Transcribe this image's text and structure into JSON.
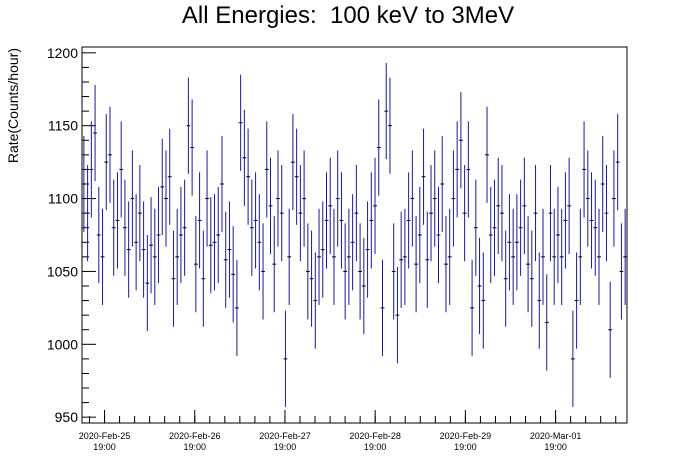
{
  "chart_data": {
    "type": "scatter",
    "title": "All Energies:  100 keV to 3MeV",
    "xlabel": "",
    "ylabel": "Rate(Counts/hour)",
    "ylim": [
      946,
      1204
    ],
    "xlim": [
      0,
      145
    ],
    "grid": false,
    "y_ticks": [
      950,
      1000,
      1050,
      1100,
      1150,
      1200
    ],
    "x_ticks": [
      {
        "x": 6,
        "date": "2020-Feb-25",
        "time": "19:00"
      },
      {
        "x": 30,
        "date": "2020-Feb-26",
        "time": "19:00"
      },
      {
        "x": 54,
        "date": "2020-Feb-27",
        "time": "19:00"
      },
      {
        "x": 78,
        "date": "2020-Feb-28",
        "time": "19:00"
      },
      {
        "x": 102,
        "date": "2020-Feb-29",
        "time": "19:00"
      },
      {
        "x": 126,
        "date": "2020-Mar-01",
        "time": "19:00"
      }
    ],
    "series": [
      {
        "color": "#1a1a8c",
        "error": 33,
        "values": [
          1110,
          1090,
          1120,
          1145,
          1075,
          1060,
          1125,
          1130,
          1080,
          1085,
          1120,
          1080,
          1065,
          1100,
          1070,
          1090,
          1065,
          1042,
          1068,
          1060,
          1075,
          1108,
          1100,
          1115,
          1045,
          1060,
          1075,
          1080,
          1150,
          1135,
          1055,
          1085,
          1045,
          1100,
          1068,
          1070,
          1075,
          1110,
          1058,
          1065,
          1048,
          1025,
          1152,
          1128,
          1115,
          1080,
          1085,
          1070,
          1050,
          1120,
          1095,
          1055,
          1100,
          1090,
          990,
          1060,
          1125,
          1115,
          1090,
          1100,
          1050,
          1045,
          1030,
          1060,
          1065,
          1085,
          1095,
          1060,
          1100,
          1085,
          1050,
          1060,
          1070,
          1090,
          1050,
          1040,
          1065,
          1085,
          1095,
          1135,
          1025,
          1160,
          1150,
          1050,
          1020,
          1058,
          1060,
          1085,
          1100,
          1055,
          1075,
          1115,
          1058,
          1090,
          1100,
          1075,
          1110,
          1055,
          1060,
          1100,
          1120,
          1140,
          1090,
          1120,
          1025,
          1080,
          1040,
          1030,
          1130,
          1075,
          1080,
          1095,
          1090,
          1045,
          1070,
          1060,
          1070,
          1080,
          1095,
          1055,
          1045,
          1090,
          1030,
          1060,
          1015,
          1090,
          1060,
          1075,
          1060,
          1085,
          1095,
          990,
          1030,
          1060,
          1120,
          1100,
          1085,
          1080,
          1060,
          1110,
          1090,
          1010,
          1100,
          1125,
          1050,
          1060
        ]
      }
    ]
  }
}
